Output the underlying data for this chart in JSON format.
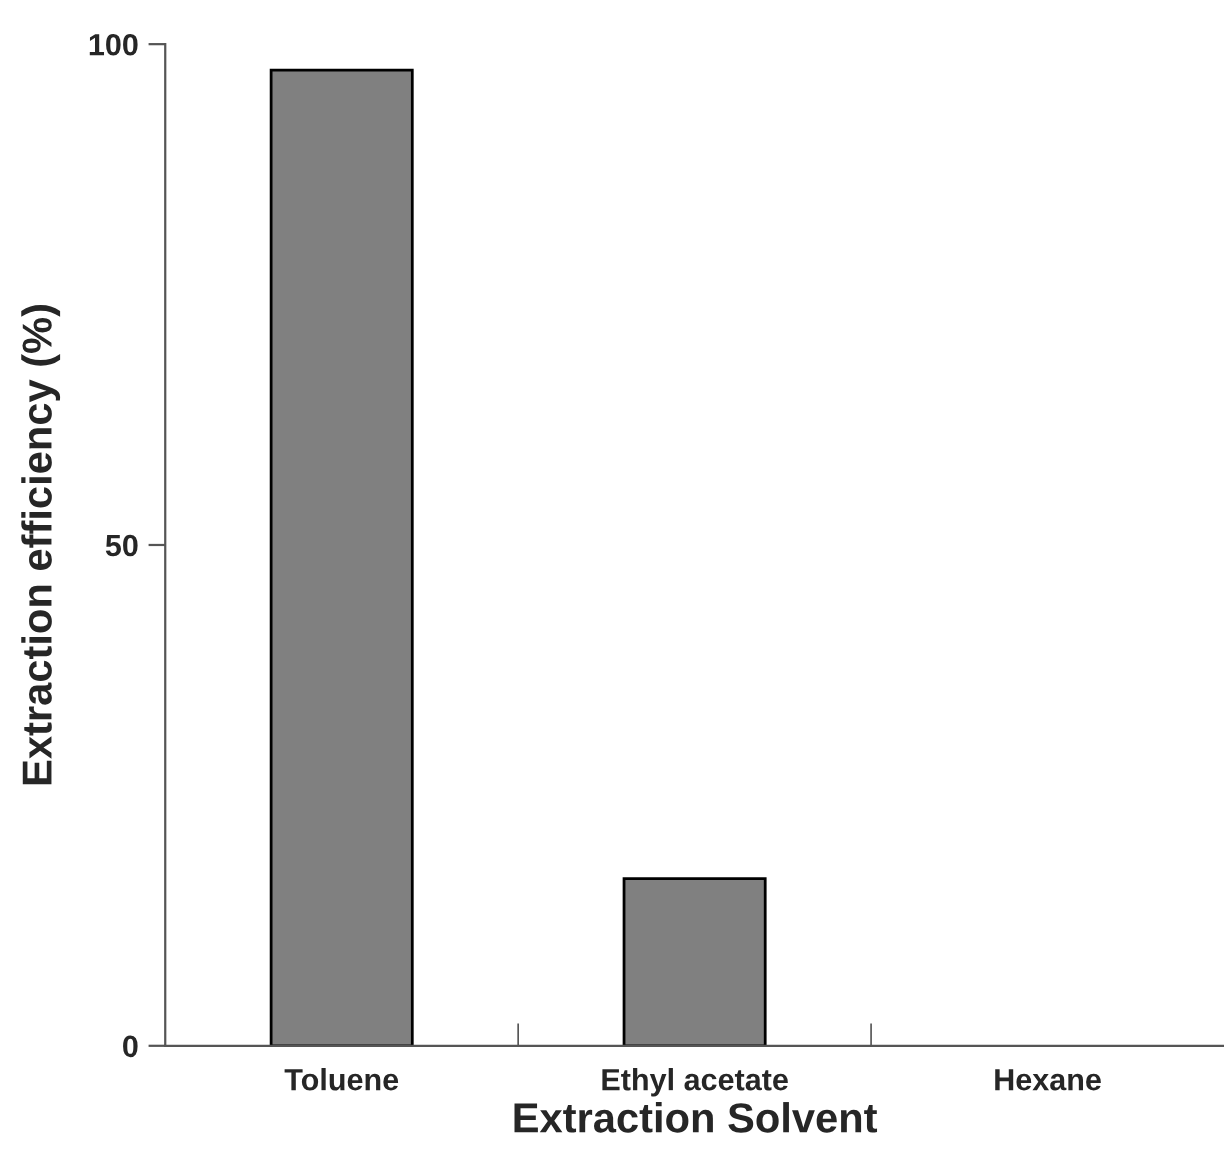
{
  "chart_data": {
    "type": "bar",
    "xlabel": "Extraction Solvent",
    "ylabel": "Extraction efficiency (%)",
    "categories": [
      "Toluene",
      "Ethyl acetate",
      "Hexane"
    ],
    "values": [
      97.4,
      16.7,
      0
    ],
    "color": "#808080",
    "ylim": [
      0,
      100
    ],
    "yticks": [
      0,
      50,
      100
    ],
    "grid": false,
    "legend": false
  }
}
